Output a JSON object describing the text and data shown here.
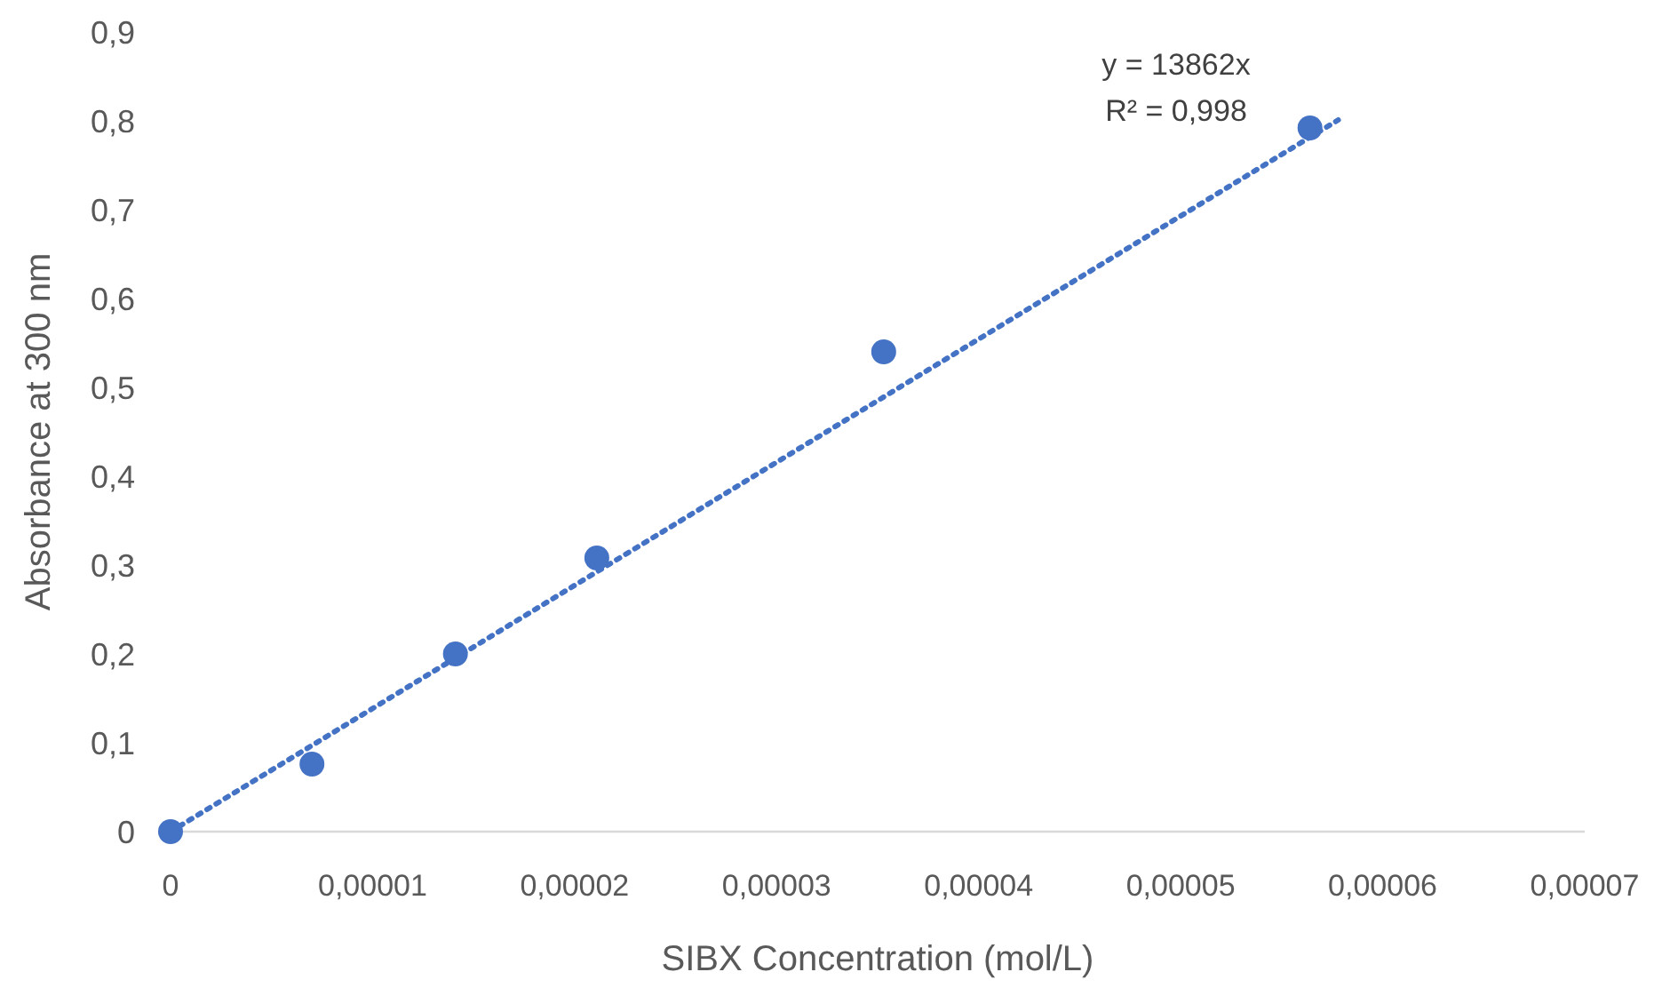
{
  "chart_data": {
    "type": "scatter",
    "xlabel": "SIBX Concentration (mol/L)",
    "ylabel": "Absorbance at 300 nm",
    "annotations": [
      "y = 13862x",
      "R² = 0,998"
    ],
    "xlim": [
      0,
      7e-05
    ],
    "ylim": [
      0,
      0.9
    ],
    "xticks": [
      0,
      {
        "value": 1e-05,
        "label": "0,00001"
      },
      {
        "value": 2e-05,
        "label": "0,00002"
      },
      {
        "value": 3e-05,
        "label": "0,00003"
      },
      {
        "value": 4e-05,
        "label": "0,00004"
      },
      {
        "value": 5e-05,
        "label": "0,00005"
      },
      {
        "value": 6e-05,
        "label": "0,00006"
      },
      {
        "value": 7e-05,
        "label": "0,00007"
      }
    ],
    "yticks": [
      0,
      {
        "value": 0.1,
        "label": "0,1"
      },
      {
        "value": 0.2,
        "label": "0,2"
      },
      {
        "value": 0.3,
        "label": "0,3"
      },
      {
        "value": 0.4,
        "label": "0,4"
      },
      {
        "value": 0.5,
        "label": "0,5"
      },
      {
        "value": 0.6,
        "label": "0,6"
      },
      {
        "value": 0.7,
        "label": "0,7"
      },
      {
        "value": 0.8,
        "label": "0,8"
      },
      {
        "value": 0.9,
        "label": "0,9"
      }
    ],
    "series": [
      {
        "type": "line",
        "color": "#4472c4",
        "line_style": "dotted",
        "marker": "none",
        "x": [
          0,
          5.78e-05
        ],
        "values": [
          0,
          0.801
        ]
      },
      {
        "color": "#4472c4",
        "marker": "circle",
        "x": [
          0,
          7e-06,
          1.41e-05,
          2.11e-05,
          3.53e-05,
          5.64e-05
        ],
        "values": [
          0,
          0.076,
          0.2,
          0.308,
          0.54,
          0.792
        ]
      }
    ]
  }
}
